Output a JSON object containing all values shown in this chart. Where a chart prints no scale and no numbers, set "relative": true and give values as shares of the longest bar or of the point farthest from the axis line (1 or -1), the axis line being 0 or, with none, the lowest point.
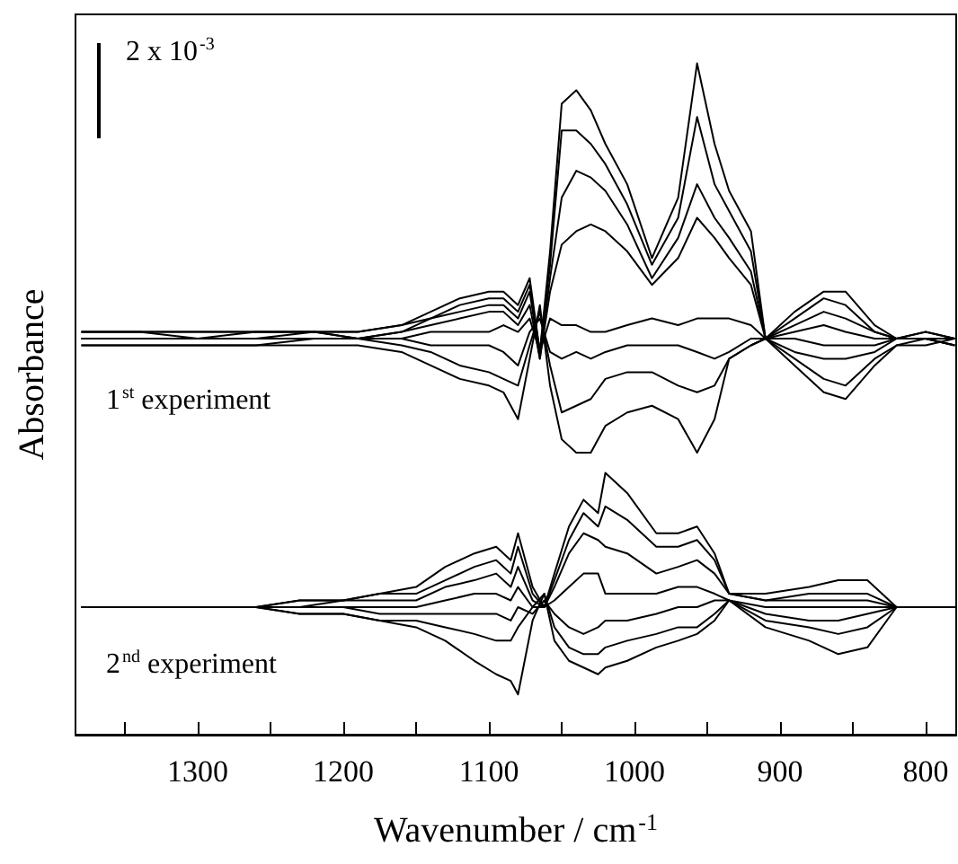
{
  "chart_data": {
    "type": "line",
    "relative": true,
    "xlabel": "Wavenumber / cm$^{-1}$",
    "ylabel": "Absorbance",
    "annotations": [
      "2 x 10$^{-3}$",
      "1$^{st}$ experiment",
      "2$^{nd}$ experiment"
    ],
    "xlim": [
      1384,
      779
    ],
    "xticks": [
      {
        "value": 1350,
        "label": null
      },
      1300,
      {
        "value": 1250,
        "label": null
      },
      1200,
      {
        "value": 1150,
        "label": null
      },
      1100,
      {
        "value": 1050,
        "label": null
      },
      1000,
      {
        "value": 950,
        "label": null
      },
      900,
      {
        "value": 850,
        "label": null
      },
      800
    ],
    "series": [
      {
        "color": "#000000",
        "x": [
          1380,
          1340,
          1300,
          1260,
          1220,
          1190,
          1160,
          1140,
          1120,
          1100,
          1090,
          1080,
          1072,
          1065,
          1058,
          1050,
          1040,
          1030,
          1020,
          1005,
          988,
          970,
          957,
          945,
          935,
          920,
          910,
          890,
          870,
          855,
          835,
          820,
          800,
          780
        ],
        "values": [
          0.6,
          0.6,
          0.6,
          0.6,
          0.6,
          0.6,
          0.61,
          0.63,
          0.65,
          0.66,
          0.66,
          0.64,
          0.68,
          0.57,
          0.72,
          0.94,
          0.96,
          0.93,
          0.88,
          0.82,
          0.71,
          0.8,
          1.0,
          0.88,
          0.81,
          0.75,
          0.59,
          0.63,
          0.66,
          0.66,
          0.61,
          0.59,
          0.6,
          0.59
        ]
      },
      {
        "color": "#000000",
        "x": [
          1380,
          1340,
          1300,
          1260,
          1220,
          1190,
          1160,
          1140,
          1120,
          1100,
          1090,
          1080,
          1072,
          1065,
          1058,
          1050,
          1040,
          1030,
          1020,
          1005,
          988,
          970,
          957,
          945,
          935,
          920,
          910,
          890,
          870,
          855,
          835,
          820,
          800,
          780
        ],
        "values": [
          0.6,
          0.6,
          0.6,
          0.6,
          0.6,
          0.6,
          0.61,
          0.62,
          0.64,
          0.65,
          0.65,
          0.63,
          0.67,
          0.57,
          0.7,
          0.9,
          0.9,
          0.88,
          0.85,
          0.79,
          0.7,
          0.77,
          0.92,
          0.82,
          0.78,
          0.72,
          0.59,
          0.62,
          0.65,
          0.64,
          0.6,
          0.59,
          0.6,
          0.59
        ]
      },
      {
        "color": "#000000",
        "x": [
          1380,
          1340,
          1300,
          1260,
          1220,
          1190,
          1160,
          1140,
          1120,
          1100,
          1090,
          1080,
          1072,
          1065,
          1058,
          1050,
          1040,
          1030,
          1020,
          1005,
          988,
          970,
          957,
          945,
          935,
          920,
          910,
          890,
          870,
          855,
          835,
          820,
          800,
          780
        ],
        "values": [
          0.6,
          0.6,
          0.59,
          0.6,
          0.6,
          0.59,
          0.6,
          0.62,
          0.63,
          0.64,
          0.64,
          0.62,
          0.66,
          0.56,
          0.68,
          0.8,
          0.84,
          0.83,
          0.81,
          0.76,
          0.68,
          0.74,
          0.82,
          0.77,
          0.74,
          0.69,
          0.59,
          0.61,
          0.63,
          0.62,
          0.6,
          0.59,
          0.59,
          0.58
        ]
      },
      {
        "color": "#000000",
        "x": [
          1380,
          1340,
          1300,
          1260,
          1220,
          1190,
          1160,
          1140,
          1120,
          1100,
          1090,
          1080,
          1072,
          1065,
          1058,
          1050,
          1040,
          1030,
          1020,
          1005,
          988,
          970,
          957,
          945,
          935,
          920,
          910,
          890,
          870,
          855,
          835,
          820,
          800,
          780
        ],
        "values": [
          0.59,
          0.59,
          0.59,
          0.59,
          0.6,
          0.59,
          0.6,
          0.61,
          0.62,
          0.63,
          0.63,
          0.61,
          0.64,
          0.56,
          0.66,
          0.73,
          0.75,
          0.76,
          0.75,
          0.72,
          0.67,
          0.71,
          0.77,
          0.74,
          0.71,
          0.67,
          0.59,
          0.6,
          0.61,
          0.6,
          0.59,
          0.59,
          0.59,
          0.59
        ]
      },
      {
        "color": "#000000",
        "x": [
          1380,
          1340,
          1300,
          1260,
          1220,
          1190,
          1160,
          1140,
          1120,
          1100,
          1090,
          1080,
          1072,
          1065,
          1058,
          1050,
          1040,
          1030,
          1020,
          1005,
          988,
          970,
          957,
          945,
          935,
          920,
          910,
          890,
          870,
          855,
          835,
          820,
          800,
          780
        ],
        "values": [
          0.59,
          0.59,
          0.59,
          0.59,
          0.59,
          0.59,
          0.59,
          0.6,
          0.6,
          0.6,
          0.61,
          0.6,
          0.62,
          0.57,
          0.62,
          0.61,
          0.61,
          0.6,
          0.6,
          0.61,
          0.62,
          0.61,
          0.62,
          0.62,
          0.62,
          0.61,
          0.59,
          0.59,
          0.58,
          0.58,
          0.58,
          0.59,
          0.59,
          0.59
        ]
      },
      {
        "color": "#000000",
        "x": [
          1380,
          1340,
          1300,
          1260,
          1220,
          1190,
          1160,
          1140,
          1120,
          1100,
          1090,
          1080,
          1072,
          1065,
          1058,
          1050,
          1040,
          1030,
          1020,
          1005,
          988,
          970,
          957,
          945,
          935,
          920,
          910,
          890,
          870,
          855,
          835,
          820,
          800,
          780
        ],
        "values": [
          0.59,
          0.59,
          0.59,
          0.59,
          0.59,
          0.59,
          0.59,
          0.58,
          0.58,
          0.58,
          0.57,
          0.55,
          0.6,
          0.62,
          0.57,
          0.56,
          0.57,
          0.56,
          0.57,
          0.58,
          0.58,
          0.58,
          0.57,
          0.56,
          0.57,
          0.59,
          0.59,
          0.57,
          0.56,
          0.56,
          0.57,
          0.59,
          0.59,
          0.58
        ]
      },
      {
        "color": "#000000",
        "x": [
          1380,
          1340,
          1300,
          1260,
          1220,
          1190,
          1160,
          1140,
          1120,
          1100,
          1090,
          1080,
          1072,
          1065,
          1058,
          1050,
          1040,
          1030,
          1020,
          1005,
          988,
          970,
          957,
          945,
          935,
          920,
          910,
          890,
          870,
          855,
          835,
          820,
          800,
          780
        ],
        "values": [
          0.58,
          0.58,
          0.58,
          0.58,
          0.59,
          0.59,
          0.58,
          0.57,
          0.55,
          0.54,
          0.53,
          0.52,
          0.58,
          0.63,
          0.55,
          0.48,
          0.49,
          0.5,
          0.53,
          0.54,
          0.54,
          0.52,
          0.51,
          0.52,
          0.56,
          0.58,
          0.59,
          0.56,
          0.53,
          0.52,
          0.56,
          0.58,
          0.58,
          0.59
        ]
      },
      {
        "color": "#000000",
        "x": [
          1380,
          1340,
          1300,
          1260,
          1220,
          1190,
          1160,
          1140,
          1120,
          1100,
          1090,
          1080,
          1072,
          1065,
          1058,
          1050,
          1040,
          1030,
          1020,
          1005,
          988,
          970,
          957,
          945,
          935,
          920,
          910,
          890,
          870,
          855,
          835,
          820,
          800,
          780
        ],
        "values": [
          0.58,
          0.58,
          0.58,
          0.58,
          0.58,
          0.58,
          0.57,
          0.55,
          0.53,
          0.52,
          0.51,
          0.47,
          0.56,
          0.64,
          0.52,
          0.44,
          0.42,
          0.42,
          0.46,
          0.48,
          0.49,
          0.47,
          0.42,
          0.47,
          0.56,
          0.58,
          0.59,
          0.55,
          0.51,
          0.5,
          0.55,
          0.58,
          0.59,
          0.58
        ]
      },
      {
        "color": "#000000",
        "x": [
          1380,
          1340,
          1300,
          1260,
          1230,
          1200,
          1175,
          1150,
          1130,
          1110,
          1095,
          1085,
          1080,
          1070,
          1062,
          1055,
          1045,
          1035,
          1025,
          1020,
          1005,
          985,
          970,
          957,
          945,
          935,
          910,
          880,
          860,
          840,
          820,
          800,
          780
        ],
        "values": [
          0.19,
          0.19,
          0.19,
          0.19,
          0.2,
          0.2,
          0.21,
          0.22,
          0.25,
          0.27,
          0.28,
          0.26,
          0.3,
          0.22,
          0.19,
          0.24,
          0.31,
          0.35,
          0.33,
          0.39,
          0.36,
          0.3,
          0.3,
          0.31,
          0.27,
          0.21,
          0.21,
          0.22,
          0.23,
          0.23,
          0.19,
          0.19,
          0.19
        ]
      },
      {
        "color": "#000000",
        "x": [
          1380,
          1340,
          1300,
          1260,
          1230,
          1200,
          1175,
          1150,
          1130,
          1110,
          1095,
          1085,
          1080,
          1070,
          1062,
          1055,
          1045,
          1035,
          1025,
          1020,
          1005,
          985,
          970,
          957,
          945,
          935,
          910,
          880,
          860,
          840,
          820,
          800,
          780
        ],
        "values": [
          0.19,
          0.19,
          0.19,
          0.19,
          0.2,
          0.2,
          0.21,
          0.21,
          0.23,
          0.25,
          0.26,
          0.24,
          0.28,
          0.21,
          0.19,
          0.23,
          0.29,
          0.33,
          0.31,
          0.34,
          0.32,
          0.28,
          0.28,
          0.29,
          0.26,
          0.21,
          0.2,
          0.21,
          0.21,
          0.21,
          0.19,
          0.19,
          0.19
        ]
      },
      {
        "color": "#000000",
        "x": [
          1380,
          1340,
          1300,
          1260,
          1230,
          1200,
          1175,
          1150,
          1130,
          1110,
          1095,
          1085,
          1080,
          1070,
          1062,
          1055,
          1045,
          1035,
          1025,
          1020,
          1005,
          985,
          970,
          957,
          945,
          935,
          910,
          880,
          860,
          840,
          820,
          800,
          780
        ],
        "values": [
          0.19,
          0.19,
          0.19,
          0.19,
          0.19,
          0.2,
          0.2,
          0.2,
          0.22,
          0.23,
          0.24,
          0.22,
          0.25,
          0.2,
          0.19,
          0.22,
          0.27,
          0.3,
          0.29,
          0.28,
          0.27,
          0.24,
          0.25,
          0.26,
          0.24,
          0.21,
          0.2,
          0.2,
          0.2,
          0.2,
          0.19,
          0.19,
          0.19
        ]
      },
      {
        "color": "#000000",
        "x": [
          1380,
          1340,
          1300,
          1260,
          1230,
          1200,
          1175,
          1150,
          1130,
          1110,
          1095,
          1085,
          1080,
          1070,
          1062,
          1055,
          1045,
          1035,
          1025,
          1020,
          1005,
          985,
          970,
          957,
          945,
          935,
          910,
          880,
          860,
          840,
          820,
          800,
          780
        ],
        "values": [
          0.19,
          0.19,
          0.19,
          0.19,
          0.19,
          0.19,
          0.19,
          0.19,
          0.2,
          0.21,
          0.21,
          0.2,
          0.22,
          0.19,
          0.19,
          0.2,
          0.22,
          0.24,
          0.24,
          0.21,
          0.21,
          0.21,
          0.22,
          0.22,
          0.21,
          0.2,
          0.19,
          0.19,
          0.19,
          0.19,
          0.19,
          0.19,
          0.19
        ]
      },
      {
        "color": "#000000",
        "x": [
          1380,
          1340,
          1300,
          1260,
          1230,
          1200,
          1175,
          1150,
          1130,
          1110,
          1095,
          1085,
          1080,
          1070,
          1062,
          1055,
          1045,
          1035,
          1025,
          1020,
          1005,
          985,
          970,
          957,
          945,
          935,
          910,
          880,
          860,
          840,
          820,
          800,
          780
        ],
        "values": [
          0.19,
          0.19,
          0.19,
          0.19,
          0.19,
          0.19,
          0.18,
          0.18,
          0.18,
          0.18,
          0.18,
          0.17,
          0.19,
          0.18,
          0.2,
          0.18,
          0.16,
          0.15,
          0.16,
          0.17,
          0.17,
          0.18,
          0.19,
          0.19,
          0.2,
          0.2,
          0.18,
          0.17,
          0.17,
          0.18,
          0.19,
          0.19,
          0.19
        ]
      },
      {
        "color": "#000000",
        "x": [
          1380,
          1340,
          1300,
          1260,
          1230,
          1200,
          1175,
          1150,
          1130,
          1110,
          1095,
          1085,
          1080,
          1070,
          1062,
          1055,
          1045,
          1035,
          1025,
          1020,
          1005,
          985,
          970,
          957,
          945,
          935,
          910,
          880,
          860,
          840,
          820,
          800,
          780
        ],
        "values": [
          0.19,
          0.19,
          0.19,
          0.19,
          0.18,
          0.18,
          0.17,
          0.17,
          0.16,
          0.15,
          0.14,
          0.14,
          0.16,
          0.19,
          0.21,
          0.16,
          0.13,
          0.12,
          0.12,
          0.13,
          0.14,
          0.15,
          0.16,
          0.16,
          0.18,
          0.2,
          0.17,
          0.16,
          0.15,
          0.16,
          0.19,
          0.19,
          0.19
        ]
      },
      {
        "color": "#000000",
        "x": [
          1380,
          1340,
          1300,
          1260,
          1230,
          1200,
          1175,
          1150,
          1130,
          1110,
          1095,
          1085,
          1080,
          1070,
          1062,
          1055,
          1045,
          1035,
          1025,
          1020,
          1005,
          985,
          970,
          957,
          945,
          935,
          910,
          880,
          860,
          840,
          820,
          800,
          780
        ],
        "values": [
          0.19,
          0.19,
          0.19,
          0.19,
          0.18,
          0.18,
          0.17,
          0.16,
          0.14,
          0.11,
          0.09,
          0.08,
          0.06,
          0.17,
          0.21,
          0.14,
          0.11,
          0.1,
          0.09,
          0.1,
          0.11,
          0.13,
          0.14,
          0.15,
          0.17,
          0.2,
          0.16,
          0.14,
          0.12,
          0.13,
          0.19,
          0.19,
          0.19
        ]
      }
    ]
  }
}
